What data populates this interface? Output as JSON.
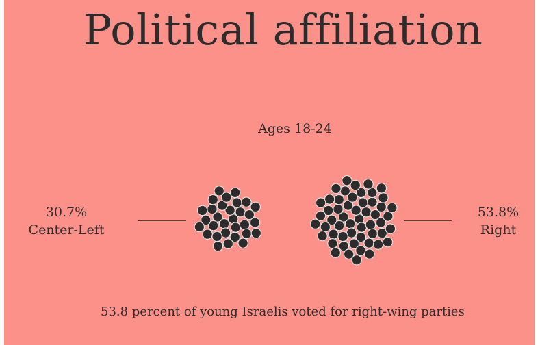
{
  "title": "Political affiliation",
  "subtitle": "Ages 18-24",
  "colors": {
    "background": "#fc918a",
    "dot": "#2d2c2c",
    "dot_outline": "#e6e0df",
    "text": "#2d2c2c"
  },
  "chart_data": {
    "type": "dot-cluster",
    "groups": [
      {
        "name": "Center-Left",
        "value_label": "30.7%",
        "value": 30.7
      },
      {
        "name": "Right",
        "value_label": "53.8%",
        "value": 53.8
      }
    ]
  },
  "caption": "53.8 percent of young Israelis voted for right-wing parties"
}
